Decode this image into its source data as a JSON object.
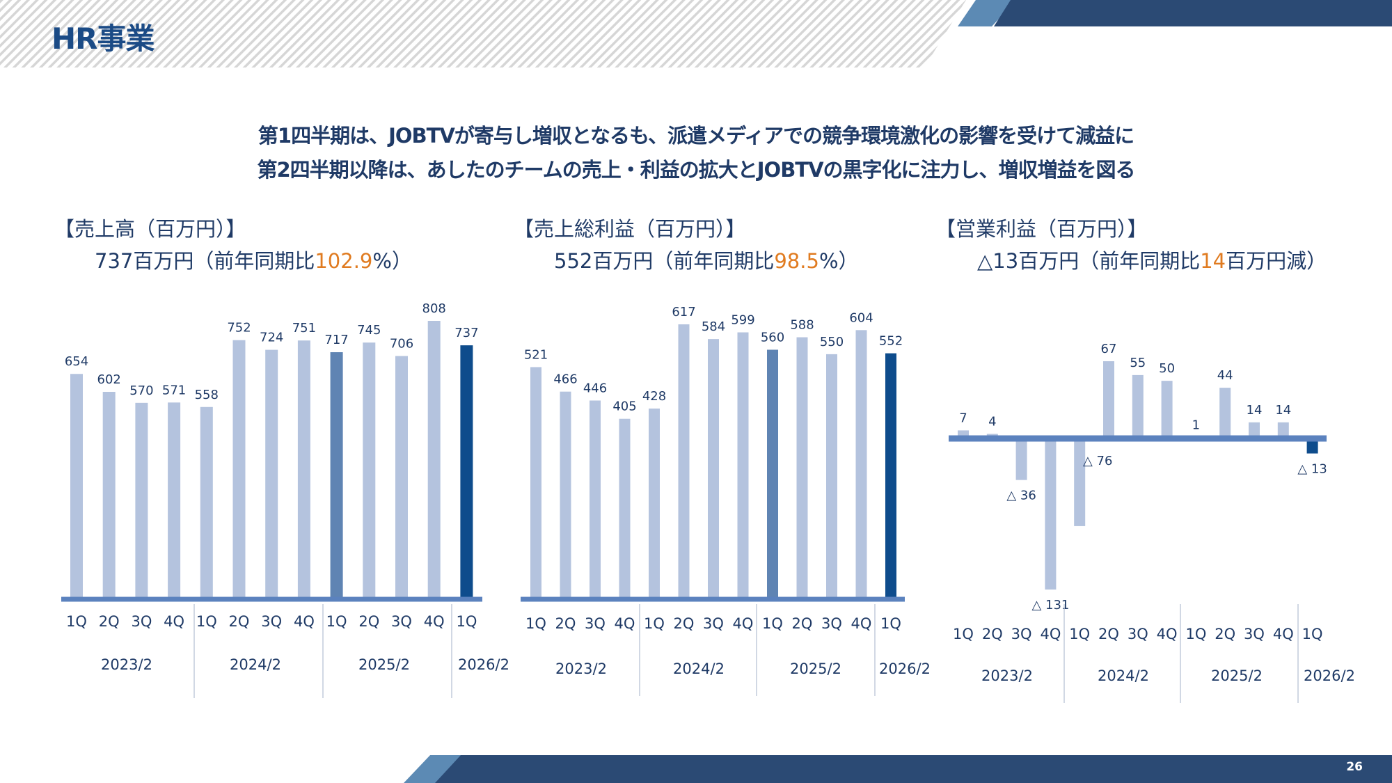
{
  "page": {
    "title": "HR事業",
    "headline_1": "第1四半期は、JOBTVが寄与し増収となるも、派遣メディアでの競争環境激化の影響を受けて減益に",
    "headline_2": "第2四半期以降は、あしたのチームの売上・利益の拡大とJOBTVの黒字化に注力し、増収増益を図る",
    "page_number": "26"
  },
  "colors": {
    "bar_light": "#b4c3de",
    "bar_mid": "#5f84b3",
    "bar_dark": "#0e4c8c",
    "axis": "#5b82be",
    "accent_orange": "#e07b20",
    "navy": "#2b4a74",
    "steel": "#5c8ab4"
  },
  "panels": [
    {
      "label": "【売上高（百万円）】",
      "summary_prefix": "737百万円（前年同期比",
      "summary_highlight": "102.9",
      "summary_suffix": "%）"
    },
    {
      "label": "【売上総利益（百万円）】",
      "summary_prefix": "552百万円（前年同期比",
      "summary_highlight": "98.5",
      "summary_suffix": "%）"
    },
    {
      "label": "【営業利益（百万円）】",
      "summary_prefix": "△13百万円（前年同期比",
      "summary_highlight": "14",
      "summary_suffix": "百万円減）"
    }
  ],
  "chart_data": [
    {
      "type": "bar",
      "categories": [
        "1Q",
        "2Q",
        "3Q",
        "4Q",
        "1Q",
        "2Q",
        "3Q",
        "4Q",
        "1Q",
        "2Q",
        "3Q",
        "4Q",
        "1Q"
      ],
      "groups": [
        "2023/2",
        "2024/2",
        "2025/2",
        "2026/2"
      ],
      "values": [
        654,
        602,
        570,
        571,
        558,
        752,
        724,
        751,
        717,
        745,
        706,
        808,
        737
      ],
      "value_labels": [
        "654",
        "602",
        "570",
        "571",
        "558",
        "752",
        "724",
        "751",
        "717",
        "745",
        "706",
        "808",
        "737"
      ],
      "ylim": [
        0,
        808
      ]
    },
    {
      "type": "bar",
      "categories": [
        "1Q",
        "2Q",
        "3Q",
        "4Q",
        "1Q",
        "2Q",
        "3Q",
        "4Q",
        "1Q",
        "2Q",
        "3Q",
        "4Q",
        "1Q"
      ],
      "groups": [
        "2023/2",
        "2024/2",
        "2025/2",
        "2026/2"
      ],
      "values": [
        521,
        466,
        446,
        405,
        428,
        617,
        584,
        599,
        560,
        588,
        550,
        604,
        552
      ],
      "value_labels": [
        "521",
        "466",
        "446",
        "405",
        "428",
        "617",
        "584",
        "599",
        "560",
        "588",
        "550",
        "604",
        "552"
      ],
      "ylim": [
        0,
        617
      ]
    },
    {
      "type": "bar",
      "categories": [
        "1Q",
        "2Q",
        "3Q",
        "4Q",
        "1Q",
        "2Q",
        "3Q",
        "4Q",
        "1Q",
        "2Q",
        "3Q",
        "4Q",
        "1Q"
      ],
      "groups": [
        "2023/2",
        "2024/2",
        "2025/2",
        "2026/2"
      ],
      "values": [
        7,
        4,
        -36,
        -131,
        -76,
        67,
        55,
        50,
        1,
        44,
        14,
        14,
        -13
      ],
      "value_labels": [
        "7",
        "4",
        "△ 36",
        "△ 131",
        "△ 76",
        "67",
        "55",
        "50",
        "1",
        "44",
        "14",
        "14",
        "△ 13"
      ],
      "ylim": [
        -131,
        67
      ]
    }
  ]
}
